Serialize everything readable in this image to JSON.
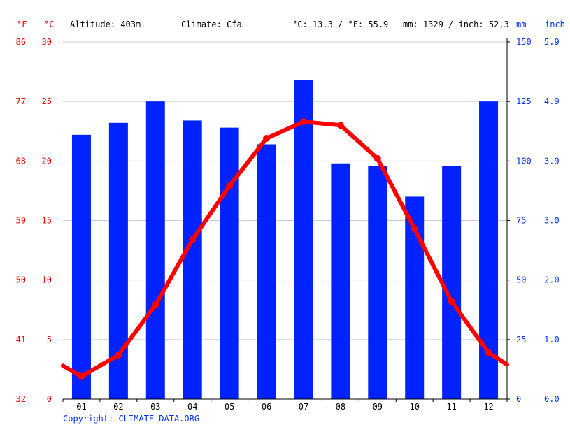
{
  "header": {
    "unit_f": "°F",
    "unit_c": "°C",
    "altitude": "Altitude: 403m",
    "climate": "Climate: Cfa",
    "temp_avg": "°C: 13.3 / °F: 55.9",
    "precip_avg": "mm: 1329 / inch: 52.3",
    "unit_mm": "mm",
    "unit_inch": "inch"
  },
  "copyright": "Copyright: CLIMATE-DATA.ORG",
  "colors": {
    "temperature": "#ff0000",
    "precipitation": "#0022ff",
    "grid": "#cccccc",
    "axis_left": "#ff0000",
    "axis_right": "#0033ff"
  },
  "chart_data": {
    "type": "bar",
    "categories": [
      "01",
      "02",
      "03",
      "04",
      "05",
      "06",
      "07",
      "08",
      "09",
      "10",
      "11",
      "12"
    ],
    "series": [
      {
        "name": "mm",
        "type": "bar",
        "axis": "right",
        "values": [
          111,
          116,
          125,
          117,
          114,
          107,
          134,
          99,
          98,
          85,
          98,
          125
        ]
      },
      {
        "name": "°C",
        "type": "line",
        "axis": "left",
        "values": [
          1.9,
          3.7,
          7.9,
          13.4,
          17.9,
          21.9,
          23.3,
          23.0,
          20.2,
          14.3,
          8.2,
          3.9
        ],
        "edge_start": 2.8,
        "edge_end": 2.9
      }
    ],
    "y_left_c": {
      "ticks": [
        0,
        5,
        10,
        15,
        20,
        25,
        30
      ],
      "range": [
        0,
        30
      ]
    },
    "y_left_f": {
      "ticks": [
        32,
        41,
        50,
        59,
        68,
        77,
        86
      ]
    },
    "y_right_mm": {
      "ticks": [
        0,
        25,
        50,
        75,
        100,
        125,
        150
      ],
      "range": [
        0,
        150
      ]
    },
    "y_right_inch": {
      "ticks": [
        "0.0",
        "1.0",
        "2.0",
        "3.0",
        "3.9",
        "4.9",
        "5.9"
      ]
    },
    "grid": true
  }
}
